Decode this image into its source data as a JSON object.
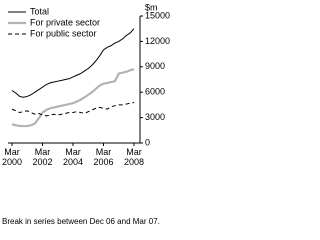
{
  "chart_data": {
    "type": "line",
    "y_unit": "$m",
    "categories": [
      "Mar 2000",
      null,
      null,
      null,
      null,
      null,
      null,
      null,
      "Mar 2002",
      null,
      null,
      null,
      null,
      null,
      null,
      null,
      "Mar 2004",
      null,
      null,
      null,
      null,
      null,
      null,
      null,
      "Mar 2006",
      null,
      null,
      null,
      null,
      null,
      null,
      null,
      "Mar 2008"
    ],
    "series": [
      {
        "name": "Total",
        "color": "#000000",
        "dash": false,
        "values": [
          6200,
          5900,
          5500,
          5400,
          5500,
          5700,
          6000,
          6300,
          6600,
          6900,
          7100,
          7200,
          7300,
          7400,
          7500,
          7600,
          7800,
          8000,
          8200,
          8500,
          8800,
          9200,
          9700,
          10300,
          11000,
          11300,
          11500,
          11800,
          12000,
          12300,
          12700,
          13000,
          13500
        ]
      },
      {
        "name": "For private sector",
        "color": "#b3b3b3",
        "dash": false,
        "values": [
          2200,
          2100,
          2000,
          2000,
          2000,
          2100,
          2300,
          2900,
          3600,
          3900,
          4100,
          4200,
          4300,
          4400,
          4500,
          4600,
          4700,
          4900,
          5100,
          5400,
          5700,
          6000,
          6400,
          6800,
          7000,
          7100,
          7200,
          7300,
          8200,
          8300,
          8400,
          8600,
          8700
        ]
      },
      {
        "name": "For public sector",
        "color": "#000000",
        "dash": true,
        "values": [
          4000,
          3800,
          3600,
          3700,
          3800,
          3600,
          3400,
          3500,
          3300,
          3200,
          3300,
          3400,
          3300,
          3400,
          3500,
          3600,
          3600,
          3700,
          3600,
          3500,
          3700,
          3900,
          4100,
          4200,
          4100,
          4000,
          4300,
          4400,
          4500,
          4500,
          4600,
          4700,
          4800
        ]
      }
    ],
    "ylim": [
      0,
      15000
    ],
    "yticks": [
      0,
      3000,
      6000,
      9000,
      12000,
      15000
    ],
    "footnote": "Break in series between Dec 06 and Mar 07."
  }
}
